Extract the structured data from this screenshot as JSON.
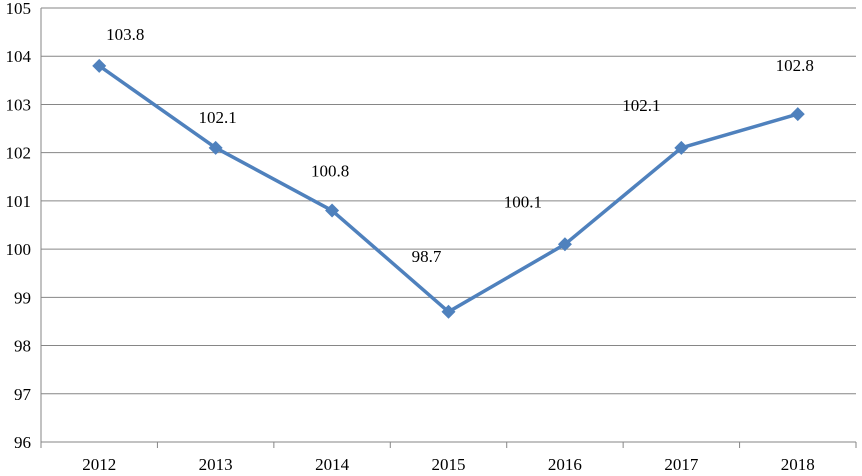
{
  "chart_data": {
    "type": "line",
    "title": "",
    "xlabel": "",
    "ylabel": "",
    "categories": [
      "2012",
      "2013",
      "2014",
      "2015",
      "2016",
      "2017",
      "2018"
    ],
    "series": [
      {
        "values": [
          103.8,
          102.1,
          100.8,
          98.7,
          100.1,
          102.1,
          102.8
        ]
      }
    ],
    "data_labels": [
      "103.8",
      "102.1",
      "100.8",
      "98.7",
      "100.1",
      "102.1",
      "102.8"
    ],
    "y_ticks": [
      "96",
      "97",
      "98",
      "99",
      "100",
      "101",
      "102",
      "103",
      "104",
      "105"
    ],
    "ylim": [
      96,
      105
    ],
    "grid": true,
    "legend": "none",
    "marker": "diamond",
    "colors": {
      "series": "#4F81BD",
      "grid": "#868686",
      "text": "#000000"
    }
  }
}
